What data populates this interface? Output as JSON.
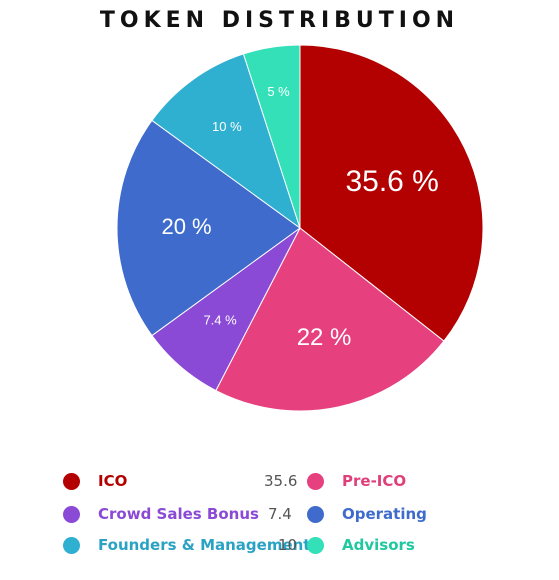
{
  "chart_data": {
    "type": "pie",
    "title": "TOKEN DISTRIBUTION",
    "slices": [
      {
        "name": "ICO",
        "value": 35.6,
        "label": "35.6 %",
        "color": "#b30000"
      },
      {
        "name": "Pre-ICO",
        "value": 22,
        "label": "22 %",
        "color": "#e6407f"
      },
      {
        "name": "Crowd Sales Bonus",
        "value": 7.4,
        "label": "7.4 %",
        "color": "#8a4ad6"
      },
      {
        "name": "Operating",
        "value": 20,
        "label": "20 %",
        "color": "#3f6ccc"
      },
      {
        "name": "Founders & Management",
        "value": 10,
        "label": "10 %",
        "color": "#30b0d0"
      },
      {
        "name": "Advisors",
        "value": 5,
        "label": "5 %",
        "color": "#33e0b8"
      }
    ],
    "legend": [
      {
        "name": "ICO",
        "value": "35.6",
        "color": "#b30000",
        "text_color": "#b30000"
      },
      {
        "name": "Pre-ICO",
        "value": "",
        "color": "#e6407f",
        "text_color": "#e0407a"
      },
      {
        "name": "Crowd Sales Bonus",
        "value": "7.4",
        "color": "#8a4ad6",
        "text_color": "#8a4ad6"
      },
      {
        "name": "Operating",
        "value": "",
        "color": "#3f6ccc",
        "text_color": "#3f6ccc"
      },
      {
        "name": "Founders & Management",
        "value": "10",
        "color": "#30b0d0",
        "text_color": "#2aa2c4"
      },
      {
        "name": "Advisors",
        "value": "",
        "color": "#33e0b8",
        "text_color": "#20c8a0"
      }
    ]
  }
}
